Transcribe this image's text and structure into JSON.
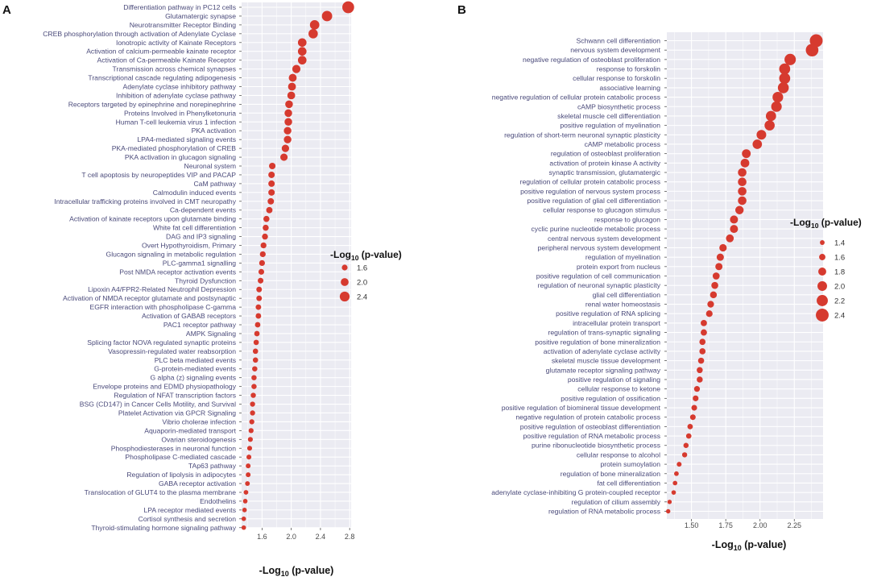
{
  "chart_data": [
    {
      "panel": "A",
      "type": "scatter",
      "xlabel_prefix": "-Log",
      "xlabel_sub": "10",
      "xlabel_suffix": " (p-value)",
      "xlim": [
        1.32,
        2.82
      ],
      "xticks": [
        1.6,
        2.0,
        2.4,
        2.8
      ],
      "legend": {
        "title_prefix": "-Log",
        "title_sub": "10",
        "title_suffix": " (p-value)",
        "values": [
          1.6,
          2.0,
          2.4
        ],
        "size_range": [
          1.35,
          2.8
        ]
      },
      "color": "#d63a2f",
      "categories": [
        "Differentiation pathway in PC12 cells",
        "Glutamatergic synapse",
        "Neurotransmitter Receptor Binding",
        "CREB phosphorylation through activation of Adenylate Cyclase",
        "Ionotropic activity of Kainate Receptors",
        "Activation of calcium-permeable kainate receptor",
        "Activation of Ca-permeable Kainate Receptor",
        "Transmission across chemical synapses",
        "Transcriptional cascade regulating adipogenesis",
        "Adenylate cyclase inhibitory pathway",
        "Inhibition of adenylate cyclase pathway",
        "Receptors targeted by epinephrine and norepinephrine",
        "Proteins Involved in Phenylketonuria",
        "Human T-cell leukemia virus 1 infection",
        "PKA activation",
        "LPA4-mediated signaling events",
        "PKA-mediated phosphorylation of CREB",
        "PKA activation in glucagon signaling",
        "Neuronal system",
        "T cell apoptosis by neuropeptides VIP and PACAP",
        "CaM pathway",
        "Calmodulin induced events",
        "Intracellular trafficking proteins involved in CMT neuropathy",
        "Ca-dependent events",
        "Activation of kainate receptors upon glutamate binding",
        "White fat cell differentiation",
        "DAG and IP3 signaling",
        "Overt Hypothyroidism, Primary",
        "Glucagon signaling in metabolic regulation",
        "PLC-gamma1 signalling",
        "Post NMDA receptor activation events",
        "Thyroid Dysfunction",
        "Lipoxin A4/FPR2-Related Neutrophil Depression",
        "Activation of NMDA receptor glutamate and postsynaptic",
        "EGFR interaction with phospholipase C-gamma",
        "Activation of GABAB receptors",
        "PAC1 receptor pathway",
        "AMPK Signaling",
        "Splicing factor NOVA regulated synaptic proteins",
        "Vasopressin-regulated water reabsorption",
        "PLC beta mediated events",
        "G-protein-mediated events",
        "G alpha (z) signaling events",
        "Envelope proteins and  EDMD physiopathology",
        "Regulation of NFAT transcription factors",
        "BSG (CD147) in Cancer Cells Motility, and Survival",
        "Platelet Activation via GPCR Signaling",
        "Vibrio cholerae infection",
        "Aquaporin-mediated transport",
        "Ovarian steroidogenesis",
        "Phosphodiesterases in neuronal function",
        "Phospholipase C-mediated cascade",
        "TAp63 pathway",
        "Regulation of lipolysis in adipocytes",
        "GABA receptor activation",
        "Translocation of GLUT4 to the plasma membrane",
        "Endothelins",
        "LPA receptor mediated events",
        "Cortisol synthesis and secretion",
        "Thyroid-stimulating hormone signaling pathway"
      ],
      "values": [
        2.78,
        2.49,
        2.32,
        2.3,
        2.15,
        2.15,
        2.15,
        2.07,
        2.02,
        2.01,
        2.0,
        1.97,
        1.96,
        1.96,
        1.95,
        1.95,
        1.92,
        1.9,
        1.74,
        1.73,
        1.73,
        1.73,
        1.72,
        1.7,
        1.66,
        1.65,
        1.64,
        1.62,
        1.61,
        1.6,
        1.59,
        1.58,
        1.56,
        1.56,
        1.55,
        1.55,
        1.54,
        1.53,
        1.52,
        1.51,
        1.51,
        1.5,
        1.49,
        1.49,
        1.48,
        1.47,
        1.47,
        1.46,
        1.45,
        1.44,
        1.43,
        1.42,
        1.41,
        1.41,
        1.4,
        1.38,
        1.37,
        1.36,
        1.35,
        1.35
      ]
    },
    {
      "panel": "B",
      "type": "scatter",
      "xlabel_prefix": "-Log",
      "xlabel_sub": "10",
      "xlabel_suffix": " (p-value)",
      "xlim": [
        1.32,
        2.46
      ],
      "xticks": [
        1.5,
        1.75,
        2.0,
        2.25
      ],
      "xtick_labels": [
        "1.50",
        "1.75",
        "2.00",
        "2.25"
      ],
      "legend": {
        "title_prefix": "-Log",
        "title_sub": "10",
        "title_suffix": " (p-value)",
        "values": [
          1.4,
          1.6,
          1.8,
          2.0,
          2.2,
          2.4
        ],
        "size_range": [
          1.35,
          2.45
        ]
      },
      "color": "#d63a2f",
      "categories": [
        "Schwann cell differentiation",
        "nervous system development",
        "negative regulation of osteoblast proliferation",
        "response to forskolin",
        "cellular response to forskolin",
        "associative learning",
        "negative regulation of cellular protein catabolic process",
        "cAMP biosynthetic process",
        "skeletal muscle cell differentiation",
        "positive regulation of myelination",
        "regulation of short-term neuronal synaptic plasticity",
        "cAMP metabolic process",
        "regulation of osteoblast proliferation",
        "activation of protein kinase A activity",
        "synaptic transmission, glutamatergic",
        "regulation of cellular protein catabolic process",
        "positive regulation of nervous system process",
        "positive regulation of glial cell differentiation",
        "cellular response to glucagon stimulus",
        "response to glucagon",
        "cyclic purine nucleotide metabolic process",
        "central nervous system development",
        "peripheral nervous system development",
        "regulation of myelination",
        "protein export from nucleus",
        "positive regulation of cell communication",
        "regulation of neuronal synaptic plasticity",
        "glial cell differentiation",
        "renal water homeostasis",
        "positive regulation of RNA splicing",
        "intracellular protein transport",
        "regulation of trans-synaptic signaling",
        "positive regulation of bone mineralization",
        "activation of adenylate cyclase activity",
        "skeletal muscle tissue development",
        "glutamate receptor signaling pathway",
        "positive regulation of signaling",
        "cellular response to ketone",
        "positive regulation of ossification",
        "positive regulation of biomineral tissue development",
        "negative regulation of protein catabolic process",
        "positive regulation of osteoblast differentiation",
        "positive regulation of RNA metabolic process",
        "purine ribonucleotide biosynthetic process",
        "cellular response to alcohol",
        "protein sumoylation",
        "regulation of bone mineralization",
        "fat cell differentiation",
        "adenylate cyclase-inhibiting G protein-coupled receptor",
        "regulation of cilium assembly",
        "regulation of RNA metabolic process"
      ],
      "values": [
        2.41,
        2.38,
        2.22,
        2.18,
        2.18,
        2.17,
        2.13,
        2.12,
        2.08,
        2.07,
        2.01,
        1.98,
        1.9,
        1.89,
        1.87,
        1.87,
        1.87,
        1.87,
        1.85,
        1.81,
        1.81,
        1.78,
        1.73,
        1.71,
        1.7,
        1.68,
        1.67,
        1.66,
        1.64,
        1.63,
        1.59,
        1.59,
        1.58,
        1.58,
        1.57,
        1.56,
        1.56,
        1.54,
        1.53,
        1.52,
        1.51,
        1.49,
        1.48,
        1.46,
        1.45,
        1.41,
        1.39,
        1.38,
        1.37,
        1.34,
        1.33
      ]
    }
  ]
}
